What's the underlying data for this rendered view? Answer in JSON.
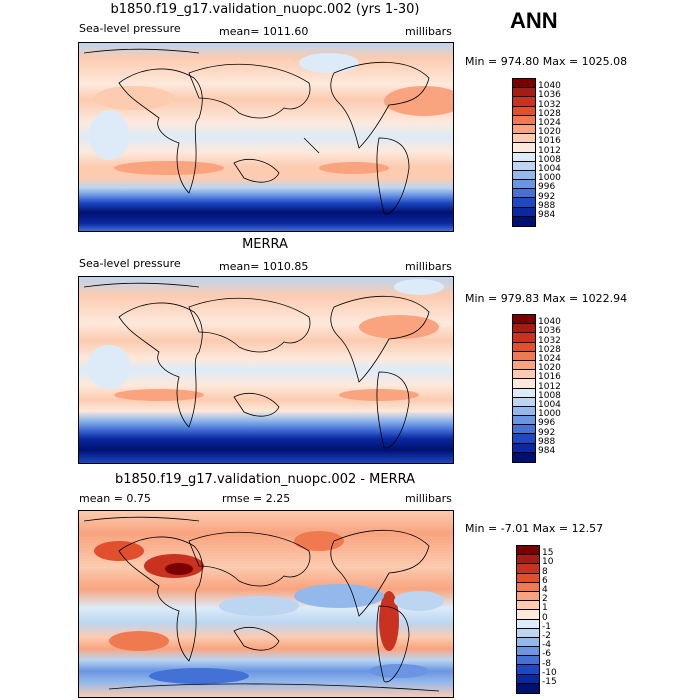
{
  "season": "ANN",
  "panels": [
    {
      "title": "b1850.f19_g17.validation_nuopc.002 (yrs 1-30)",
      "left_label": "Sea-level pressure",
      "center_label": "mean= 1011.60",
      "right_label": "millibars",
      "minmax": "Min = 974.80 Max = 1025.08",
      "colorbar": {
        "labels": [
          "1040",
          "1036",
          "1032",
          "1028",
          "1024",
          "1020",
          "1016",
          "1012",
          "1008",
          "1004",
          "1000",
          "996",
          "992",
          "988",
          "984"
        ],
        "colors": [
          "#7a0000",
          "#a51d12",
          "#c8321e",
          "#e0502c",
          "#ef7a50",
          "#f9a47f",
          "#fccbb0",
          "#fde9dc",
          "#ddebf8",
          "#bcd6f2",
          "#93b8ec",
          "#6a95e2",
          "#4371d6",
          "#1c48c4",
          "#0a28a0",
          "#001070"
        ]
      }
    },
    {
      "title": "MERRA",
      "left_label": "Sea-level pressure",
      "center_label": "mean= 1010.85",
      "right_label": "millibars",
      "minmax": "Min = 979.83 Max = 1022.94",
      "colorbar": {
        "labels": [
          "1040",
          "1036",
          "1032",
          "1028",
          "1024",
          "1020",
          "1016",
          "1012",
          "1008",
          "1004",
          "1000",
          "996",
          "992",
          "988",
          "984"
        ],
        "colors": [
          "#7a0000",
          "#a51d12",
          "#c8321e",
          "#e0502c",
          "#ef7a50",
          "#f9a47f",
          "#fccbb0",
          "#fde9dc",
          "#ddebf8",
          "#bcd6f2",
          "#93b8ec",
          "#6a95e2",
          "#4371d6",
          "#1c48c4",
          "#0a28a0",
          "#001070"
        ]
      }
    },
    {
      "title": "b1850.f19_g17.validation_nuopc.002 - MERRA",
      "left_label": "mean =    0.75",
      "center_label": "rmse =    2.25",
      "right_label": "millibars",
      "minmax": "Min =  -7.01 Max =  12.57",
      "colorbar": {
        "labels": [
          "15",
          "10",
          "8",
          "6",
          "4",
          "2",
          "1",
          "0",
          "-1",
          "-2",
          "-4",
          "-6",
          "-8",
          "-10",
          "-15"
        ],
        "colors": [
          "#7a0000",
          "#a51d12",
          "#c8321e",
          "#e0502c",
          "#ef7a50",
          "#f9a47f",
          "#fccbb0",
          "#fde9dc",
          "#ddebf8",
          "#bcd6f2",
          "#93b8ec",
          "#6a95e2",
          "#4371d6",
          "#1c48c4",
          "#0a28a0",
          "#001070"
        ]
      }
    }
  ]
}
